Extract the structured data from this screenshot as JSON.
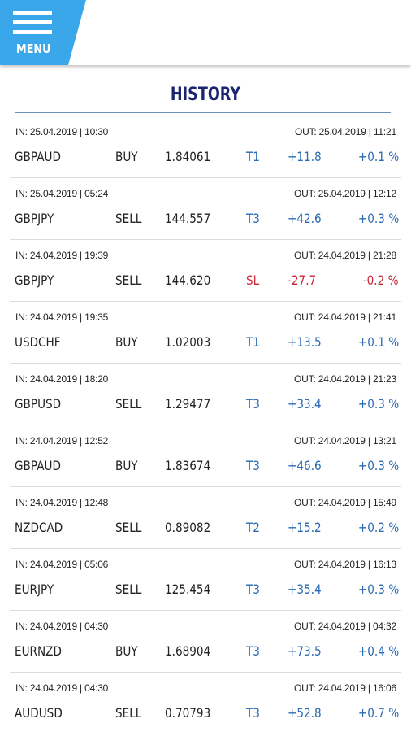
{
  "colors": {
    "accent": "#3aa7ea",
    "title": "#1a2470",
    "positive": "#2a6ab4",
    "negative": "#c8283a"
  },
  "header": {
    "menu_label": "MENU",
    "menu_icon": "hamburger-icon"
  },
  "page": {
    "title": "HISTORY"
  },
  "trades": [
    {
      "in": "IN: 25.04.2019 | 10:30",
      "out": "OUT: 25.04.2019 | 11:21",
      "pair": "GBPAUD",
      "side": "BUY",
      "price": "1.84061",
      "target": "T1",
      "pips": "+11.8",
      "pct": "+0.1 %",
      "negative": false
    },
    {
      "in": "IN: 25.04.2019 | 05:24",
      "out": "OUT: 25.04.2019 | 12:12",
      "pair": "GBPJPY",
      "side": "SELL",
      "price": "144.557",
      "target": "T3",
      "pips": "+42.6",
      "pct": "+0.3 %",
      "negative": false
    },
    {
      "in": "IN: 24.04.2019 | 19:39",
      "out": "OUT: 24.04.2019 | 21:28",
      "pair": "GBPJPY",
      "side": "SELL",
      "price": "144.620",
      "target": "SL",
      "pips": "-27.7",
      "pct": "-0.2 %",
      "negative": true
    },
    {
      "in": "IN: 24.04.2019 | 19:35",
      "out": "OUT: 24.04.2019 | 21:41",
      "pair": "USDCHF",
      "side": "BUY",
      "price": "1.02003",
      "target": "T1",
      "pips": "+13.5",
      "pct": "+0.1 %",
      "negative": false
    },
    {
      "in": "IN: 24.04.2019 | 18:20",
      "out": "OUT: 24.04.2019 | 21:23",
      "pair": "GBPUSD",
      "side": "SELL",
      "price": "1.29477",
      "target": "T3",
      "pips": "+33.4",
      "pct": "+0.3 %",
      "negative": false
    },
    {
      "in": "IN: 24.04.2019 | 12:52",
      "out": "OUT: 24.04.2019 | 13:21",
      "pair": "GBPAUD",
      "side": "BUY",
      "price": "1.83674",
      "target": "T3",
      "pips": "+46.6",
      "pct": "+0.3 %",
      "negative": false
    },
    {
      "in": "IN: 24.04.2019 | 12:48",
      "out": "OUT: 24.04.2019 | 15:49",
      "pair": "NZDCAD",
      "side": "SELL",
      "price": "0.89082",
      "target": "T2",
      "pips": "+15.2",
      "pct": "+0.2 %",
      "negative": false
    },
    {
      "in": "IN: 24.04.2019 | 05:06",
      "out": "OUT: 24.04.2019 | 16:13",
      "pair": "EURJPY",
      "side": "SELL",
      "price": "125.454",
      "target": "T3",
      "pips": "+35.4",
      "pct": "+0.3 %",
      "negative": false
    },
    {
      "in": "IN: 24.04.2019 | 04:30",
      "out": "OUT: 24.04.2019 | 04:32",
      "pair": "EURNZD",
      "side": "BUY",
      "price": "1.68904",
      "target": "T3",
      "pips": "+73.5",
      "pct": "+0.4 %",
      "negative": false
    },
    {
      "in": "IN: 24.04.2019 | 04:30",
      "out": "OUT: 24.04.2019 | 16:06",
      "pair": "AUDUSD",
      "side": "SELL",
      "price": "0.70793",
      "target": "T3",
      "pips": "+52.8",
      "pct": "+0.7 %",
      "negative": false
    }
  ]
}
